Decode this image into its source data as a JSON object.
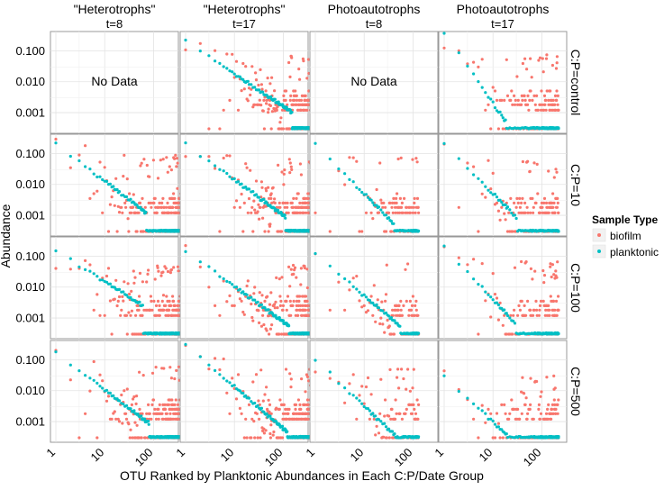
{
  "chart_data": {
    "type": "scatter",
    "title": "",
    "xlabel": "OTU Ranked by Planktonic Abundances in Each C:P/Date Group",
    "ylabel": "Abundance",
    "x_scale": "log",
    "y_scale": "log",
    "xlim": [
      1,
      250
    ],
    "ylim": [
      0.0003,
      0.3
    ],
    "x_ticks": [
      1,
      10,
      100
    ],
    "x_tick_labels": [
      "1",
      "10",
      "100"
    ],
    "y_ticks": [
      0.1,
      0.01,
      0.001
    ],
    "y_tick_labels": [
      "0.100",
      "0.010",
      "0.001"
    ],
    "columns": [
      {
        "key": "het8",
        "label": [
          "\"Heterotrophs\"",
          "t=8"
        ]
      },
      {
        "key": "het17",
        "label": [
          "\"Heterotrophs\"",
          "t=17"
        ]
      },
      {
        "key": "pho8",
        "label": [
          "Photoautotrophs",
          "t=8"
        ]
      },
      {
        "key": "pho17",
        "label": [
          "Photoautotrophs",
          "t=17"
        ]
      }
    ],
    "rows": [
      {
        "key": "control",
        "label": "C:P=control"
      },
      {
        "key": "cp10",
        "label": "C:P=10"
      },
      {
        "key": "cp100",
        "label": "C:P=100"
      },
      {
        "key": "cp500",
        "label": "C:P=500"
      }
    ],
    "no_data_text": "No Data",
    "legend": {
      "title": "Sample Type",
      "position": "right",
      "entries": [
        {
          "name": "biofilm",
          "color": "#F8766D"
        },
        {
          "name": "planktonic",
          "color": "#00BFC4"
        }
      ]
    },
    "panels": [
      {
        "row": 0,
        "col": 0,
        "no_data": true
      },
      {
        "row": 0,
        "col": 1,
        "no_data": false,
        "n_otu": 500,
        "p_top": 0.2,
        "p_slope": 1.05,
        "p_knee": 150,
        "b_top": 0.1,
        "b_ceil": 0.07
      },
      {
        "row": 0,
        "col": 2,
        "no_data": true
      },
      {
        "row": 0,
        "col": 3,
        "no_data": false,
        "n_otu": 220,
        "p_top": 0.4,
        "p_slope": 2.3,
        "p_knee": 18,
        "b_top": 0.1,
        "b_ceil": 0.08
      },
      {
        "row": 1,
        "col": 0,
        "no_data": false,
        "n_otu": 500,
        "p_top": 0.2,
        "p_slope": 1.2,
        "p_knee": 70,
        "b_top": 0.3,
        "b_ceil": 0.09
      },
      {
        "row": 1,
        "col": 1,
        "no_data": false,
        "n_otu": 500,
        "p_top": 0.2,
        "p_slope": 1.15,
        "p_knee": 110,
        "b_top": 0.08,
        "b_ceil": 0.07
      },
      {
        "row": 1,
        "col": 2,
        "no_data": false,
        "n_otu": 130,
        "p_top": 0.2,
        "p_slope": 1.6,
        "p_knee": 40,
        "b_top": 0.3,
        "b_ceil": 0.08
      },
      {
        "row": 1,
        "col": 3,
        "no_data": false,
        "n_otu": 220,
        "p_top": 0.2,
        "p_slope": 1.6,
        "p_knee": 30,
        "b_top": 0.2,
        "b_ceil": 0.06
      },
      {
        "row": 2,
        "col": 0,
        "no_data": false,
        "n_otu": 500,
        "p_top": 0.15,
        "p_slope": 1.0,
        "p_knee": 60,
        "b_top": 0.04,
        "b_ceil": 0.05
      },
      {
        "row": 2,
        "col": 1,
        "no_data": false,
        "n_otu": 500,
        "p_top": 0.15,
        "p_slope": 1.15,
        "p_knee": 130,
        "b_top": 0.08,
        "b_ceil": 0.06
      },
      {
        "row": 2,
        "col": 2,
        "no_data": false,
        "n_otu": 130,
        "p_top": 0.12,
        "p_slope": 1.35,
        "p_knee": 55,
        "b_top": 0.2,
        "b_ceil": 0.06
      },
      {
        "row": 2,
        "col": 3,
        "no_data": false,
        "n_otu": 220,
        "p_top": 0.2,
        "p_slope": 1.7,
        "p_knee": 28,
        "b_top": 0.2,
        "b_ceil": 0.07
      },
      {
        "row": 3,
        "col": 0,
        "no_data": false,
        "n_otu": 500,
        "p_top": 0.17,
        "p_slope": 1.2,
        "p_knee": 80,
        "b_top": 0.2,
        "b_ceil": 0.06
      },
      {
        "row": 3,
        "col": 1,
        "no_data": false,
        "n_otu": 500,
        "p_top": 0.3,
        "p_slope": 1.35,
        "p_knee": 120,
        "b_top": 0.2,
        "b_ceil": 0.05
      },
      {
        "row": 3,
        "col": 2,
        "no_data": false,
        "n_otu": 130,
        "p_top": 0.1,
        "p_slope": 1.5,
        "p_knee": 55,
        "b_top": 0.04,
        "b_ceil": 0.05
      },
      {
        "row": 3,
        "col": 3,
        "no_data": false,
        "n_otu": 220,
        "p_top": 0.03,
        "p_slope": 1.5,
        "p_knee": 22,
        "b_top": 0.05,
        "b_ceil": 0.03
      }
    ]
  }
}
